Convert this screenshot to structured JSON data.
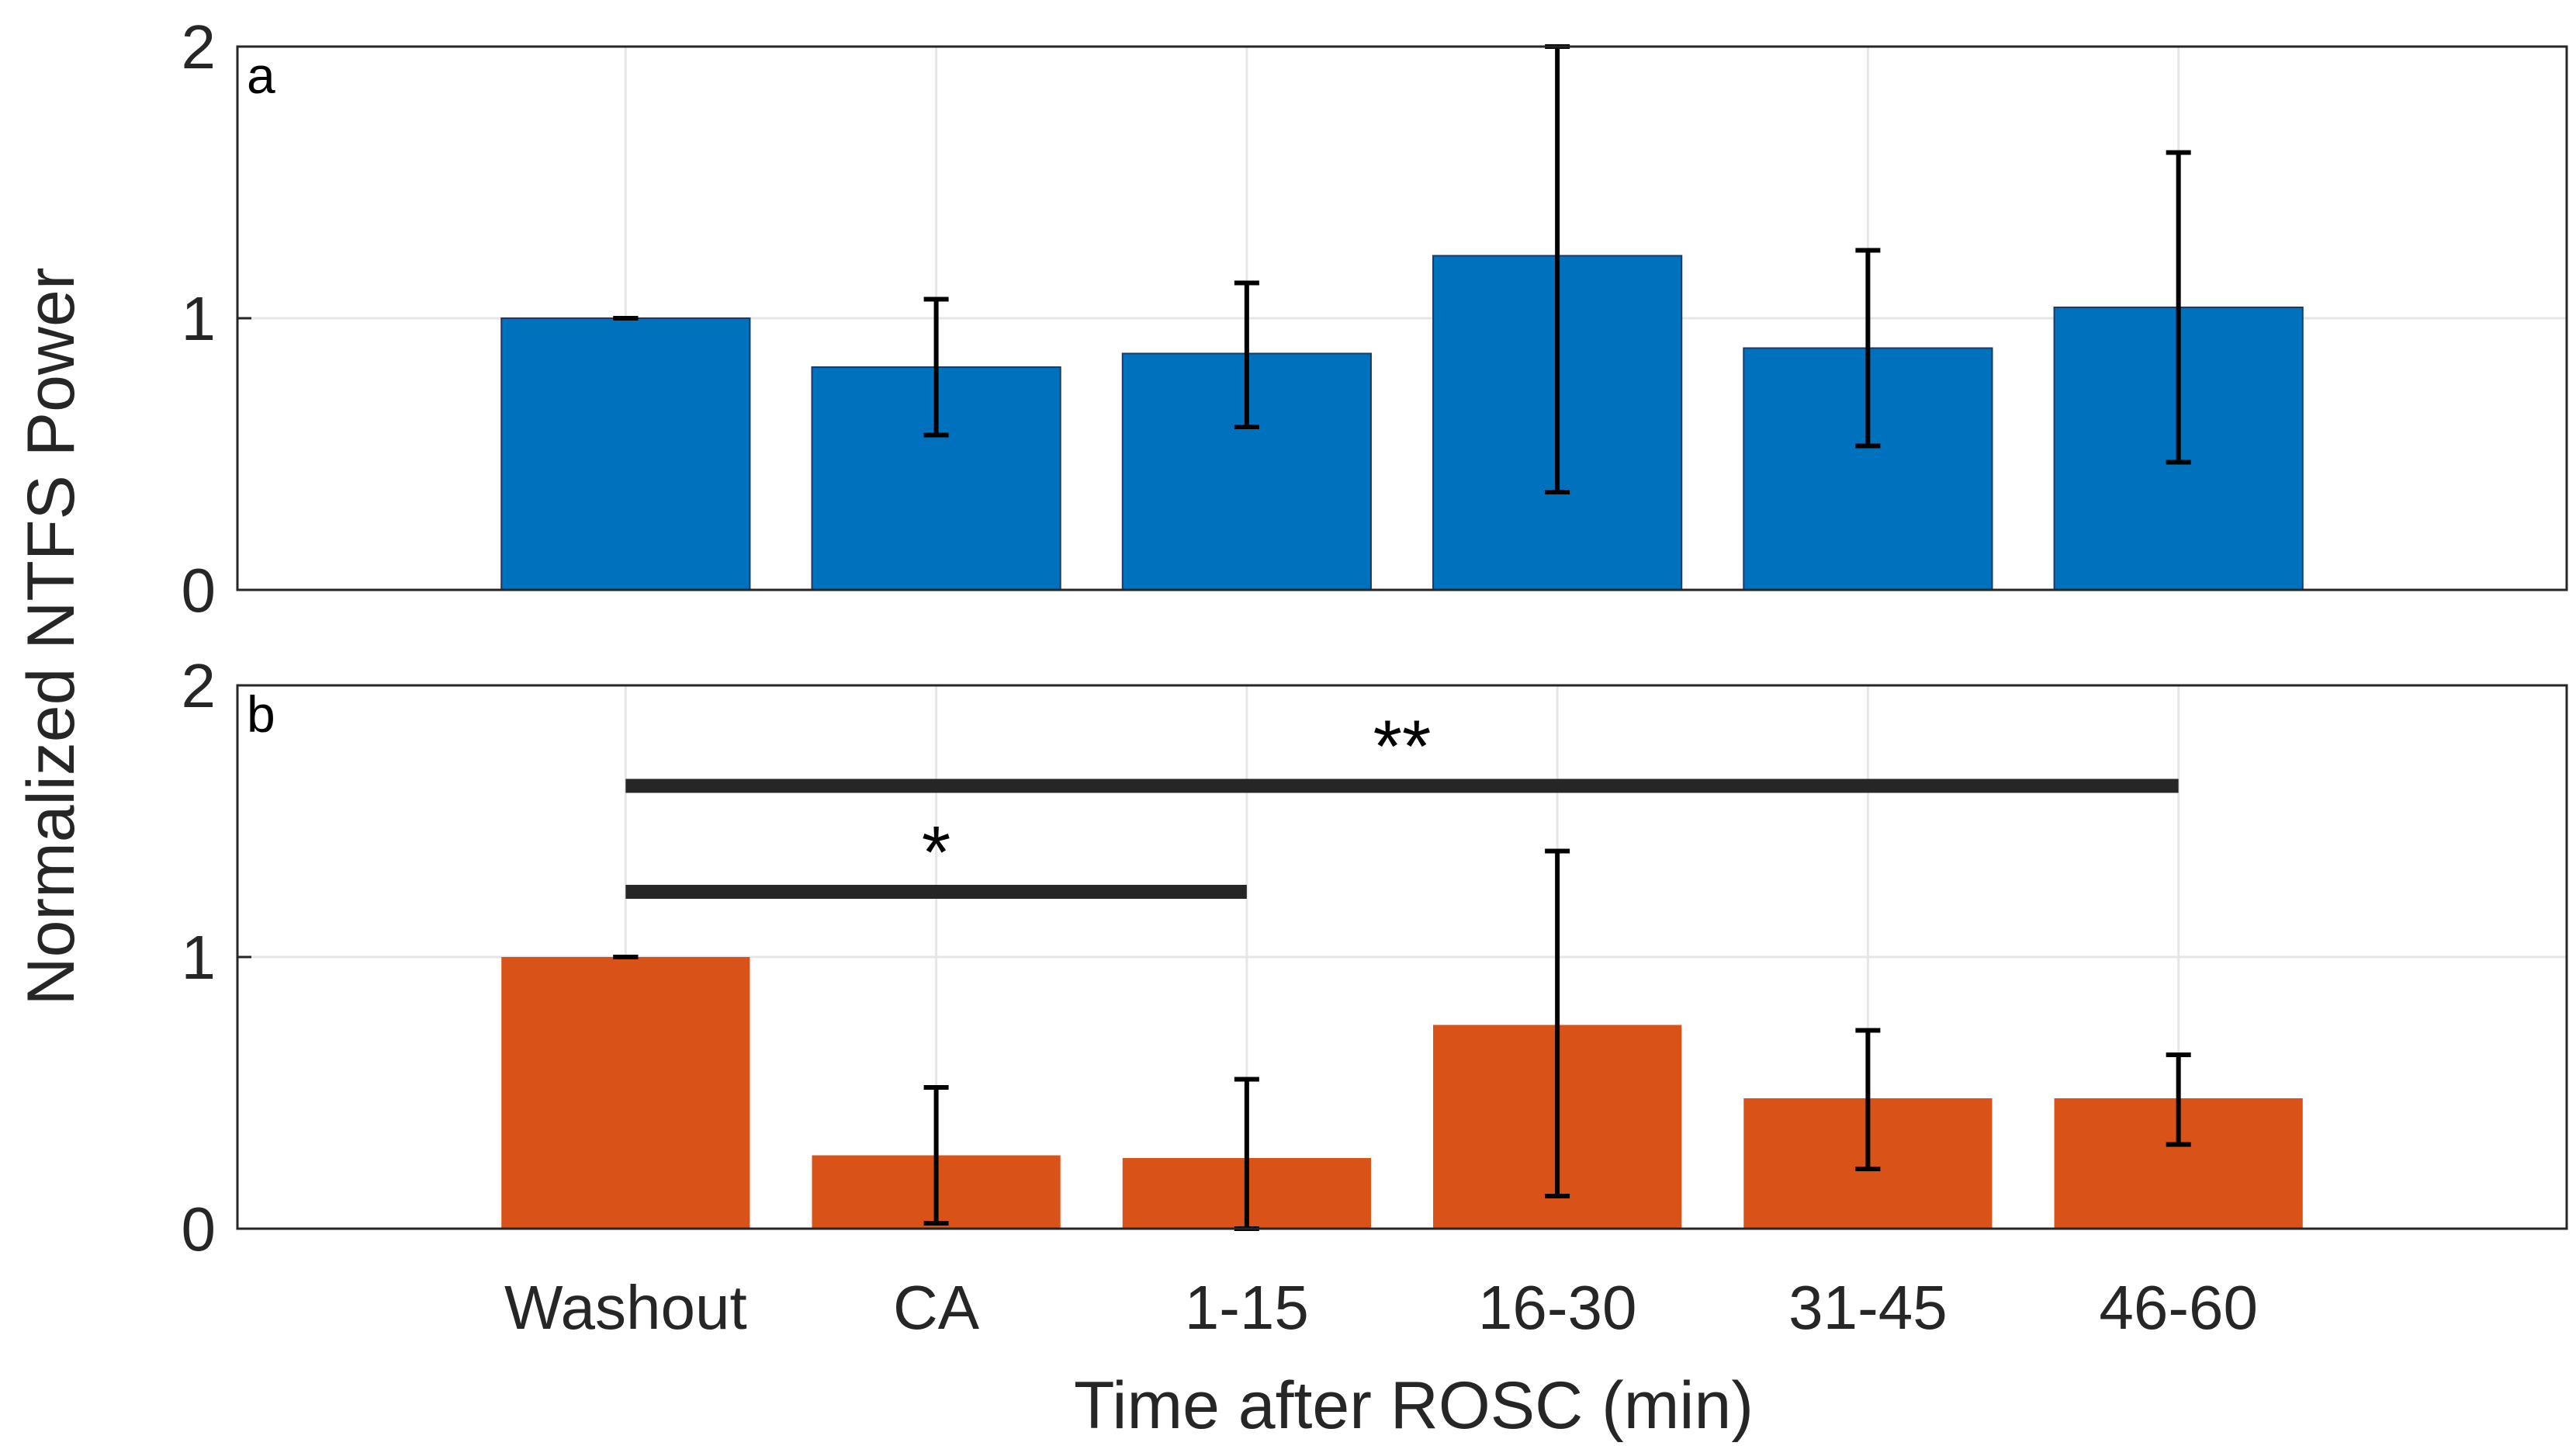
{
  "chart_data": {
    "type": "bar",
    "ylabel": "Normalized NTFS Power",
    "xlabel": "Time after ROSC (min)",
    "categories": [
      "Washout",
      "CA",
      "1-15",
      "16-30",
      "31-45",
      "46-60"
    ],
    "panels": [
      {
        "label": "a",
        "color": "#0072BD",
        "ylim": [
          0,
          2
        ],
        "yticks": [
          "0",
          "1",
          "2"
        ],
        "values": [
          1.0,
          0.82,
          0.87,
          1.23,
          0.89,
          1.04
        ],
        "err_low": [
          1.0,
          0.57,
          0.6,
          0.36,
          0.53,
          0.47
        ],
        "err_high": [
          1.0,
          1.07,
          1.13,
          2.0,
          1.25,
          1.61
        ],
        "significance": []
      },
      {
        "label": "b",
        "color": "#D95319",
        "ylim": [
          0,
          2
        ],
        "yticks": [
          "0",
          "1",
          "2"
        ],
        "values": [
          1.0,
          0.27,
          0.26,
          0.75,
          0.48,
          0.48
        ],
        "err_low": [
          1.0,
          0.02,
          0.0,
          0.12,
          0.22,
          0.31
        ],
        "err_high": [
          1.0,
          0.52,
          0.55,
          1.39,
          0.73,
          0.64
        ],
        "significance": [
          {
            "from": 0,
            "to": 2,
            "y": 1.24,
            "text": "*"
          },
          {
            "from": 0,
            "to": 5,
            "y": 1.63,
            "text": "**"
          }
        ]
      }
    ]
  }
}
